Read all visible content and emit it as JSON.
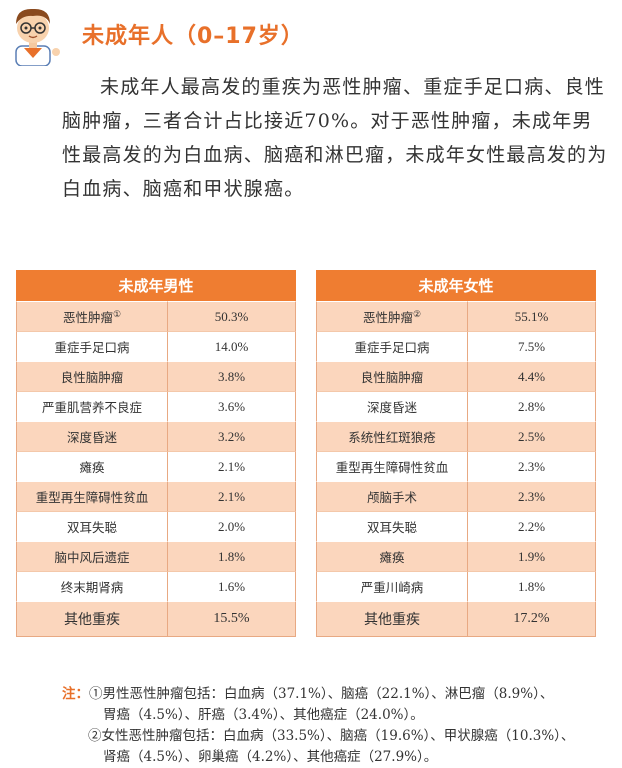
{
  "header": {
    "title": "未成年人（0–17岁）"
  },
  "intro": "未成年人最高发的重疾为恶性肿瘤、重症手足口病、良性脑肿瘤，三者合计占比接近70%。对于恶性肿瘤，未成年男性最高发的为白血病、脑癌和淋巴瘤，未成年女性最高发的为白血病、脑癌和甲状腺癌。",
  "male_table": {
    "title": "未成年男性",
    "rows": [
      {
        "name": "恶性肿瘤",
        "mark": "①",
        "value": "50.3%"
      },
      {
        "name": "重症手足口病",
        "value": "14.0%"
      },
      {
        "name": "良性脑肿瘤",
        "value": "3.8%"
      },
      {
        "name": "严重肌营养不良症",
        "value": "3.6%"
      },
      {
        "name": "深度昏迷",
        "value": "3.2%"
      },
      {
        "name": "瘫痪",
        "value": "2.1%"
      },
      {
        "name": "重型再生障碍性贫血",
        "value": "2.1%"
      },
      {
        "name": "双耳失聪",
        "value": "2.0%"
      },
      {
        "name": "脑中风后遗症",
        "value": "1.8%"
      },
      {
        "name": "终末期肾病",
        "value": "1.6%"
      },
      {
        "name": "其他重疾",
        "value": "15.5%"
      }
    ]
  },
  "female_table": {
    "title": "未成年女性",
    "rows": [
      {
        "name": "恶性肿瘤",
        "mark": "②",
        "value": "55.1%"
      },
      {
        "name": "重症手足口病",
        "value": "7.5%"
      },
      {
        "name": "良性脑肿瘤",
        "value": "4.4%"
      },
      {
        "name": "深度昏迷",
        "value": "2.8%"
      },
      {
        "name": "系统性红斑狼疮",
        "value": "2.5%"
      },
      {
        "name": "重型再生障碍性贫血",
        "value": "2.3%"
      },
      {
        "name": "颅脑手术",
        "value": "2.3%"
      },
      {
        "name": "双耳失聪",
        "value": "2.2%"
      },
      {
        "name": "瘫痪",
        "value": "1.9%"
      },
      {
        "name": "严重川崎病",
        "value": "1.8%"
      },
      {
        "name": "其他重疾",
        "value": "17.2%"
      }
    ]
  },
  "notes": {
    "label": "注：",
    "note1_line1": "①男性恶性肿瘤包括：白血病（37.1%）、脑癌（22.1%）、淋巴瘤（8.9%）、",
    "note1_line2": "胃癌（4.5%）、肝癌（3.4%）、其他癌症（24.0%）。",
    "note2_line1": "②女性恶性肿瘤包括：白血病（33.5%）、脑癌（19.6%）、甲状腺癌（10.3%）、",
    "note2_line2": "肾癌（4.5%）、卵巢癌（4.2%）、其他癌症（27.9%）。"
  },
  "colors": {
    "accent": "#ef7d31",
    "row_fill": "#fbd6bd",
    "title": "#e8702a"
  }
}
